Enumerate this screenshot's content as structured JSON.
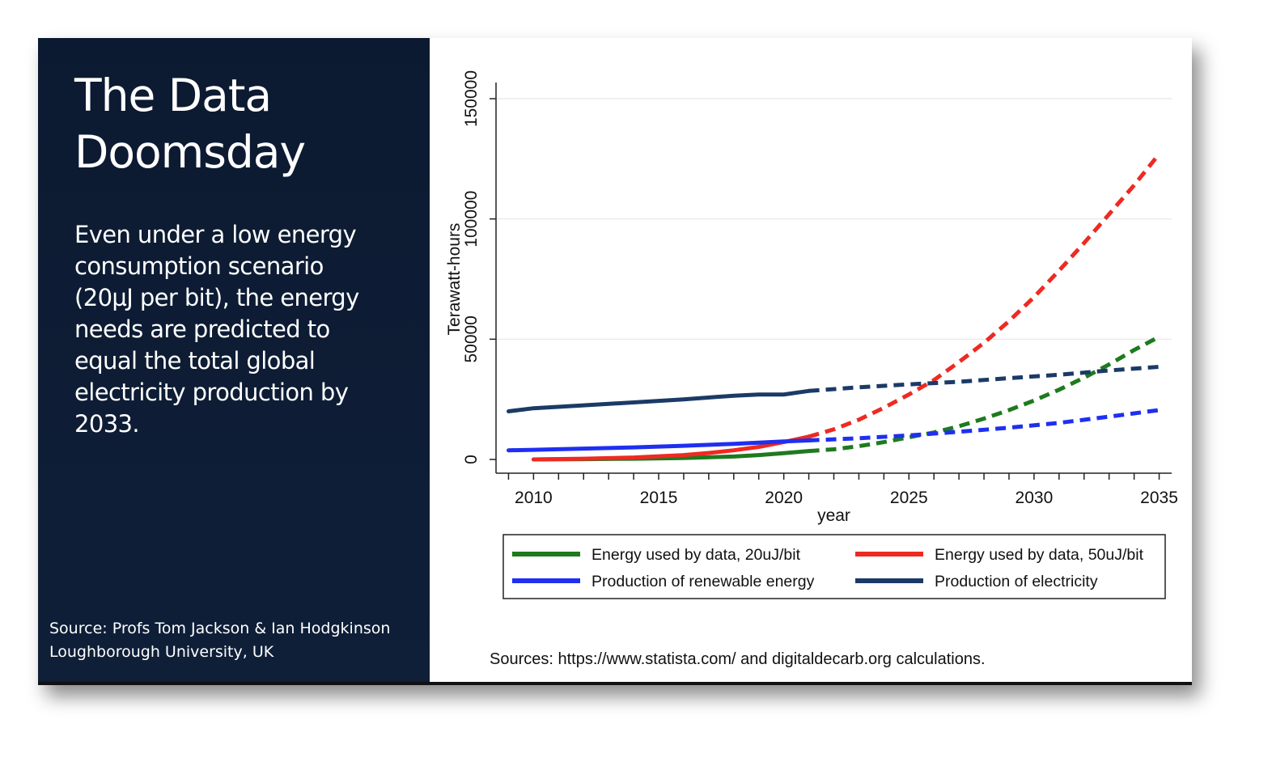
{
  "slide": {
    "title_line1": "The Data",
    "title_line2": "Doomsday",
    "body_lines": [
      "Even under a low energy",
      "consumption scenario",
      "(20µJ per bit), the energy",
      "needs are predicted to",
      "equal the total global",
      "electricity production by",
      "2033."
    ],
    "credit_line1": "Source: Profs Tom Jackson & Ian Hodgkinson",
    "credit_line2": "Loughborough University, UK",
    "panel_color": "#0c1a31"
  },
  "chart_data": {
    "type": "line",
    "title": "",
    "xlabel": "year",
    "ylabel": "Terawatt-hours",
    "xlim": [
      2008.5,
      2035.5
    ],
    "ylim": [
      0,
      150000
    ],
    "x_ticks": [
      2010,
      2015,
      2020,
      2025,
      2030,
      2035
    ],
    "y_ticks": [
      0,
      50000,
      100000,
      150000
    ],
    "grid": true,
    "legend_position": "bottom",
    "sources": "Sources: https://www.statista.com/ and digitaldecarb.org  calculations.",
    "series": [
      {
        "name": "Energy used by data, 20uJ/bit",
        "color": "#1e7a1e",
        "solid": {
          "x": [
            2010,
            2012,
            2014,
            2016,
            2018,
            2019,
            2020,
            2021
          ],
          "y": [
            0,
            150,
            300,
            600,
            1200,
            1800,
            2600,
            3500
          ]
        },
        "projected": {
          "x": [
            2021,
            2022,
            2023,
            2024,
            2025,
            2026,
            2027,
            2028,
            2029,
            2030,
            2031,
            2032,
            2033,
            2034,
            2035
          ],
          "y": [
            3500,
            4200,
            5500,
            7200,
            9200,
            11200,
            13800,
            17000,
            20500,
            24500,
            29000,
            34000,
            39500,
            45500,
            51000
          ]
        }
      },
      {
        "name": "Energy used by data, 50uJ/bit",
        "color": "#ee2a22",
        "solid": {
          "x": [
            2010,
            2012,
            2014,
            2016,
            2017,
            2018,
            2019,
            2020,
            2021
          ],
          "y": [
            0,
            300,
            800,
            1800,
            2700,
            3800,
            5200,
            7200,
            9500
          ]
        },
        "projected": {
          "x": [
            2021,
            2022,
            2023,
            2024,
            2025,
            2026,
            2027,
            2028,
            2029,
            2030,
            2031,
            2032,
            2033,
            2034,
            2035
          ],
          "y": [
            9500,
            12500,
            16500,
            21500,
            27000,
            33000,
            40500,
            48500,
            57500,
            67500,
            78500,
            90000,
            102000,
            114000,
            127000
          ]
        }
      },
      {
        "name": "Production of renewable energy",
        "color": "#1f2ff0",
        "solid": {
          "x": [
            2009,
            2010,
            2012,
            2014,
            2016,
            2018,
            2019,
            2020,
            2021
          ],
          "y": [
            3800,
            4000,
            4500,
            5000,
            5700,
            6500,
            7000,
            7500,
            7900
          ]
        },
        "projected": {
          "x": [
            2021,
            2023,
            2025,
            2027,
            2029,
            2031,
            2033,
            2035
          ],
          "y": [
            7900,
            8800,
            10000,
            11500,
            13200,
            15200,
            17800,
            20500
          ]
        }
      },
      {
        "name": "Production of electricity",
        "color": "#1b3a66",
        "solid": {
          "x": [
            2009,
            2010,
            2012,
            2014,
            2016,
            2018,
            2019,
            2020,
            2021
          ],
          "y": [
            20000,
            21300,
            22500,
            23700,
            25000,
            26500,
            27000,
            27000,
            28500
          ]
        },
        "projected": {
          "x": [
            2021,
            2023,
            2025,
            2027,
            2029,
            2031,
            2033,
            2035
          ],
          "y": [
            28500,
            30000,
            31200,
            32300,
            33800,
            35200,
            37000,
            38500
          ]
        }
      }
    ]
  }
}
